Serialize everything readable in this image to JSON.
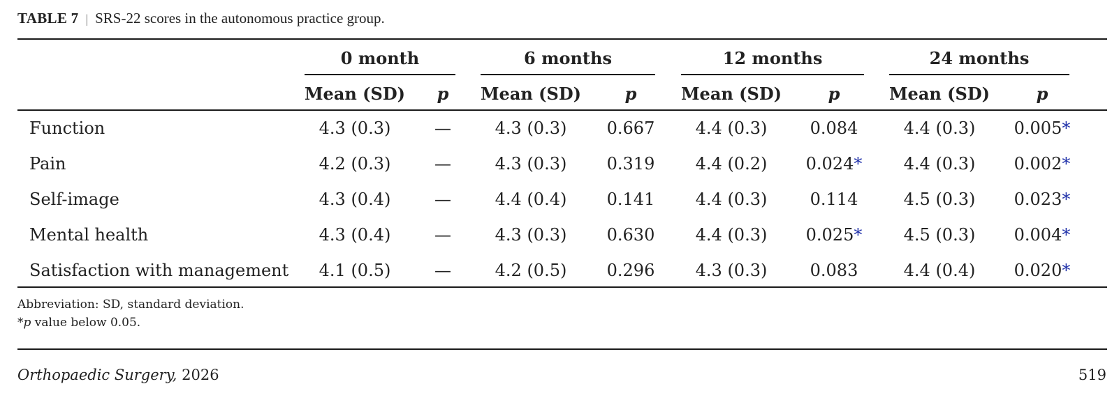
{
  "caption": {
    "label": "TABLE 7",
    "separator": "|",
    "text": "SRS-22 scores in the autonomous practice group."
  },
  "table": {
    "groups": [
      "0 month",
      "6 months",
      "12 months",
      "24 months"
    ],
    "subheaders": [
      "Mean (SD)",
      "p",
      "Mean (SD)",
      "p",
      "Mean (SD)",
      "p",
      "Mean (SD)",
      "p"
    ],
    "rows": [
      {
        "label": "Function",
        "cells": [
          {
            "v": "4.3 (0.3)"
          },
          {
            "v": "—"
          },
          {
            "v": "4.3 (0.3)"
          },
          {
            "v": "0.667"
          },
          {
            "v": "4.4 (0.3)"
          },
          {
            "v": "0.084"
          },
          {
            "v": "4.4 (0.3)"
          },
          {
            "v": "0.005",
            "star": "*"
          }
        ]
      },
      {
        "label": "Pain",
        "cells": [
          {
            "v": "4.2 (0.3)"
          },
          {
            "v": "—"
          },
          {
            "v": "4.3 (0.3)"
          },
          {
            "v": "0.319"
          },
          {
            "v": "4.4 (0.2)"
          },
          {
            "v": "0.024",
            "star": "*"
          },
          {
            "v": "4.4 (0.3)"
          },
          {
            "v": "0.002",
            "star": "*"
          }
        ]
      },
      {
        "label": "Self-image",
        "cells": [
          {
            "v": "4.3 (0.4)"
          },
          {
            "v": "—"
          },
          {
            "v": "4.4 (0.4)"
          },
          {
            "v": "0.141"
          },
          {
            "v": "4.4 (0.3)"
          },
          {
            "v": "0.114"
          },
          {
            "v": "4.5 (0.3)"
          },
          {
            "v": "0.023",
            "star": "*"
          }
        ]
      },
      {
        "label": "Mental health",
        "cells": [
          {
            "v": "4.3 (0.4)"
          },
          {
            "v": "—"
          },
          {
            "v": "4.3 (0.3)"
          },
          {
            "v": "0.630"
          },
          {
            "v": "4.4 (0.3)"
          },
          {
            "v": "0.025",
            "star": "*"
          },
          {
            "v": "4.5 (0.3)"
          },
          {
            "v": "0.004",
            "star": "*"
          }
        ]
      },
      {
        "label": "Satisfaction with management",
        "cells": [
          {
            "v": "4.1 (0.5)"
          },
          {
            "v": "—"
          },
          {
            "v": "4.2 (0.5)"
          },
          {
            "v": "0.296"
          },
          {
            "v": "4.3 (0.3)"
          },
          {
            "v": "0.083"
          },
          {
            "v": "4.4 (0.4)"
          },
          {
            "v": "0.020",
            "star": "*"
          }
        ]
      }
    ]
  },
  "footnotes": {
    "abbreviation": "Abbreviation: SD, standard deviation.",
    "star_prefix": "*",
    "star_p": "p",
    "star_text": " value below 0.05."
  },
  "footer": {
    "journal": "Orthopaedic Surgery,",
    "year": " 2026",
    "page": "519"
  },
  "colors": {
    "asterisk": "#2233aa",
    "text": "#222222"
  }
}
